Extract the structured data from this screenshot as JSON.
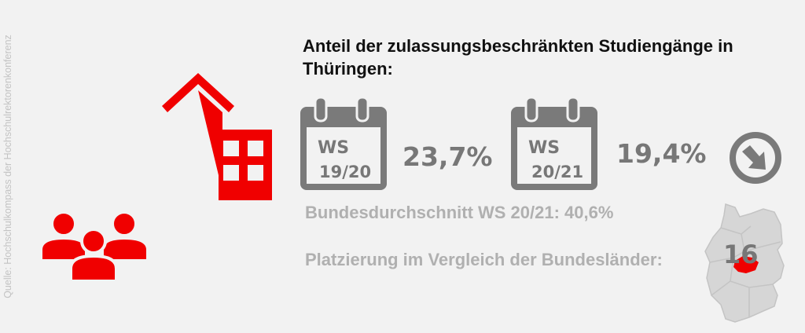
{
  "source": "Quelle: Hochschulkompass der Hochschulrektorenkonferenz",
  "title": "Anteil der zulassungsbeschränkten Studiengänge in Thüringen:",
  "periods": [
    {
      "line1": "WS",
      "line2": "19/20",
      "value": "23,7%"
    },
    {
      "line1": "WS",
      "line2": "20/21",
      "value": "19,4%"
    }
  ],
  "trend_icon": "arrow-down-right-circle-icon",
  "national_average": "Bundesdurchschnitt WS 20/21: 40,6%",
  "ranking_label": "Platzierung im Vergleich der Bundesländer:",
  "ranking_value": "16",
  "colors": {
    "accent": "#f00000",
    "icon_grey": "#7a7a7a",
    "text_grey": "#b0b0b0",
    "background": "#f2f2f2"
  }
}
